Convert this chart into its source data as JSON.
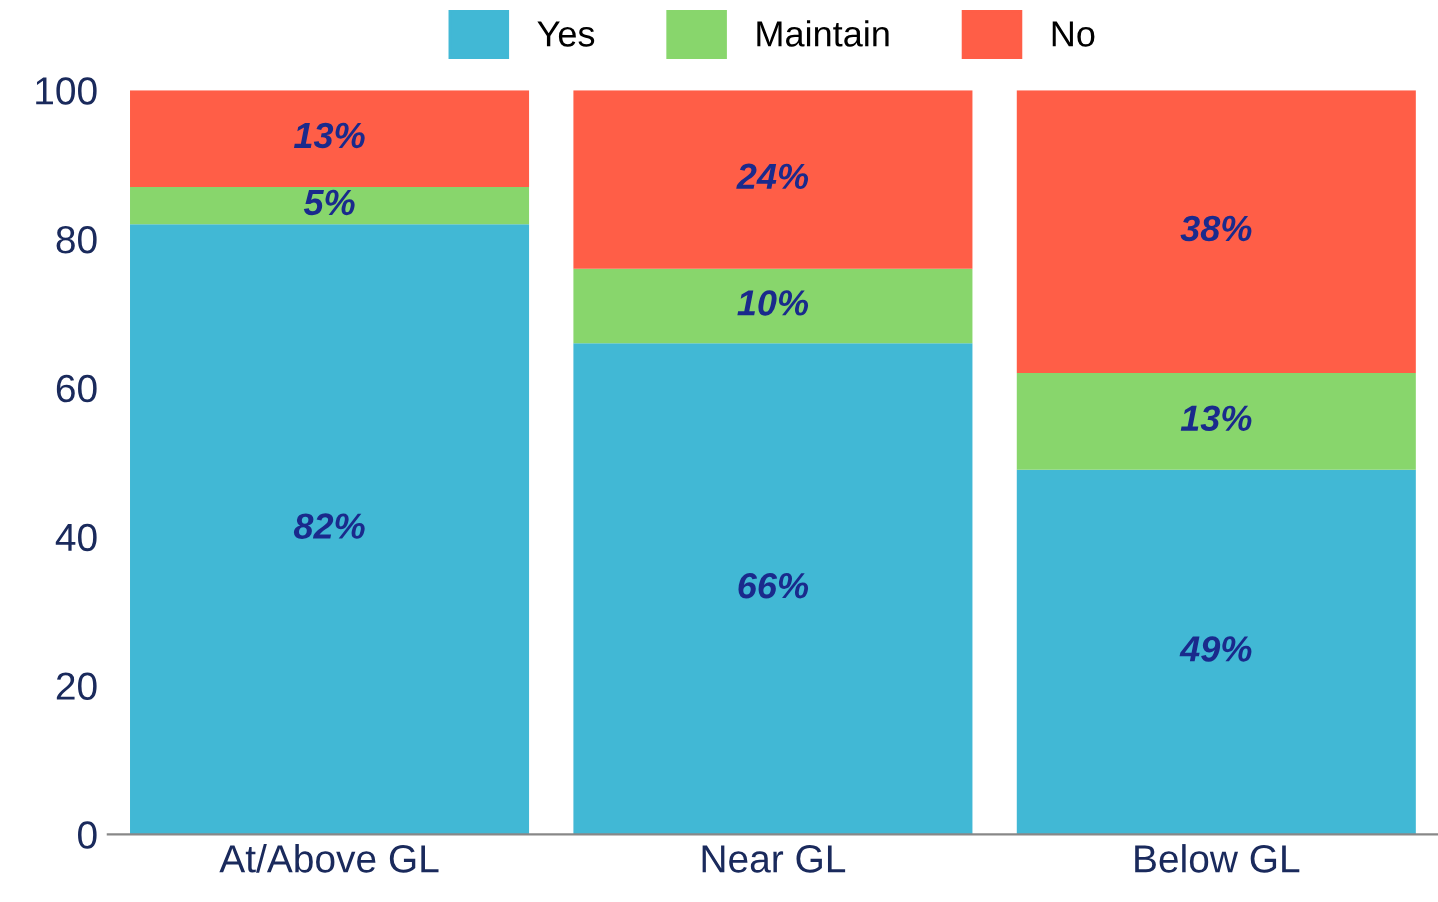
{
  "chart_data": {
    "type": "bar",
    "stacked": true,
    "categories": [
      "At/Above GL",
      "Near GL",
      "Below GL"
    ],
    "series": [
      {
        "name": "Yes",
        "color": "#41b8d5",
        "values": [
          82,
          66,
          49
        ],
        "value_labels": [
          "82%",
          "66%",
          "49%"
        ]
      },
      {
        "name": "Maintain",
        "color": "#88d66c",
        "values": [
          5,
          10,
          13
        ],
        "value_labels": [
          "5%",
          "10%",
          "13%"
        ]
      },
      {
        "name": "No",
        "color": "#ff5e47",
        "values": [
          13,
          24,
          38
        ],
        "value_labels": [
          "13%",
          "24%",
          "38%"
        ]
      }
    ],
    "ylim": [
      0,
      100
    ],
    "yticks": [
      0,
      20,
      40,
      60,
      80,
      100
    ],
    "grid": false,
    "legend": "top"
  }
}
